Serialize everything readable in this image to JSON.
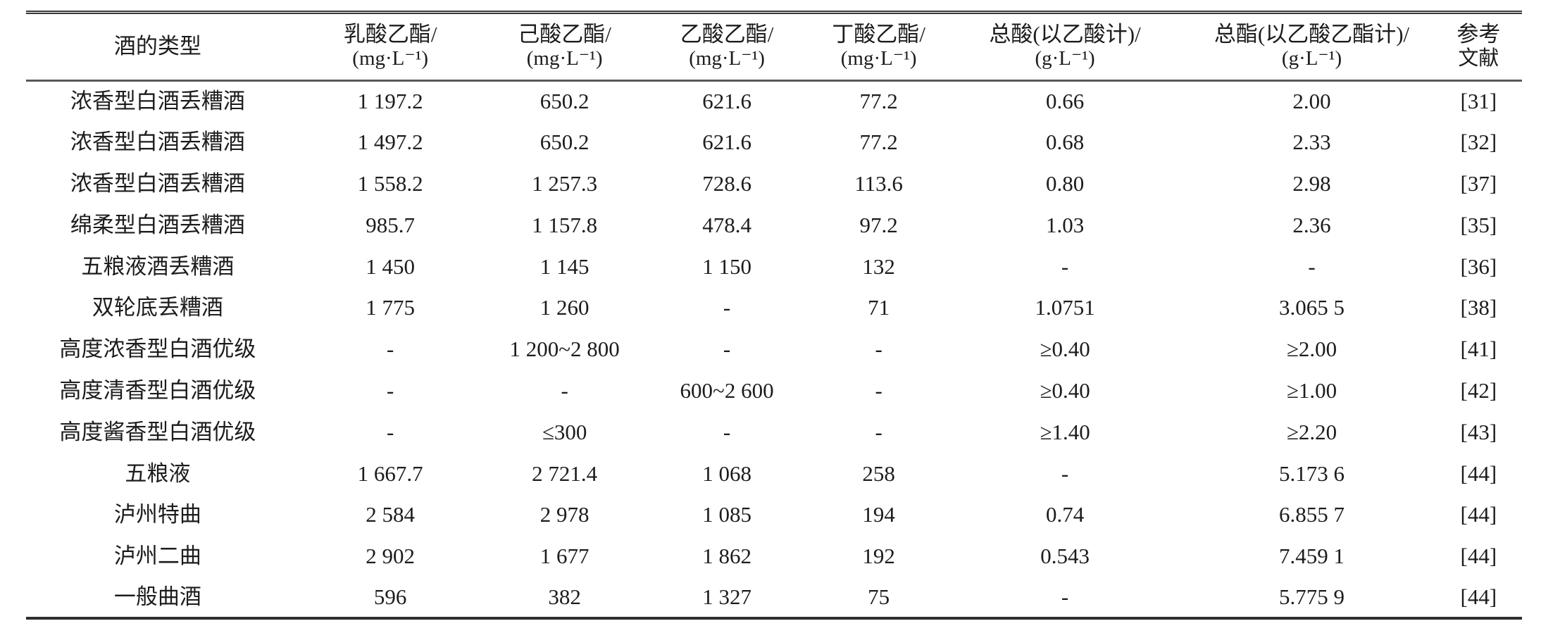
{
  "table": {
    "columns": [
      {
        "line1": "酒的类型",
        "line2": ""
      },
      {
        "line1": "乳酸乙酯/",
        "line2": "(mg·L⁻¹)"
      },
      {
        "line1": "己酸乙酯/",
        "line2": "(mg·L⁻¹)"
      },
      {
        "line1": "乙酸乙酯/",
        "line2": "(mg·L⁻¹)"
      },
      {
        "line1": "丁酸乙酯/",
        "line2": "(mg·L⁻¹)"
      },
      {
        "line1": "总酸(以乙酸计)/",
        "line2": "(g·L⁻¹)"
      },
      {
        "line1": "总酯(以乙酸乙酯计)/",
        "line2": "(g·L⁻¹)"
      },
      {
        "line1": "参考",
        "line2": "文献"
      }
    ],
    "rows": [
      [
        "浓香型白酒丢糟酒",
        "1 197.2",
        "650.2",
        "621.6",
        "77.2",
        "0.66",
        "2.00",
        "[31]"
      ],
      [
        "浓香型白酒丢糟酒",
        "1 497.2",
        "650.2",
        "621.6",
        "77.2",
        "0.68",
        "2.33",
        "[32]"
      ],
      [
        "浓香型白酒丢糟酒",
        "1 558.2",
        "1 257.3",
        "728.6",
        "113.6",
        "0.80",
        "2.98",
        "[37]"
      ],
      [
        "绵柔型白酒丢糟酒",
        "985.7",
        "1 157.8",
        "478.4",
        "97.2",
        "1.03",
        "2.36",
        "[35]"
      ],
      [
        "五粮液酒丢糟酒",
        "1 450",
        "1 145",
        "1 150",
        "132",
        "-",
        "-",
        "[36]"
      ],
      [
        "双轮底丢糟酒",
        "1 775",
        "1 260",
        "-",
        "71",
        "1.0751",
        "3.065 5",
        "[38]"
      ],
      [
        "高度浓香型白酒优级",
        "-",
        "1 200~2 800",
        "-",
        "-",
        "≥0.40",
        "≥2.00",
        "[41]"
      ],
      [
        "高度清香型白酒优级",
        "-",
        "-",
        "600~2 600",
        "-",
        "≥0.40",
        "≥1.00",
        "[42]"
      ],
      [
        "高度酱香型白酒优级",
        "-",
        "≤300",
        "-",
        "-",
        "≥1.40",
        "≥2.20",
        "[43]"
      ],
      [
        "五粮液",
        "1 667.7",
        "2 721.4",
        "1 068",
        "258",
        "-",
        "5.173 6",
        "[44]"
      ],
      [
        "泸州特曲",
        "2 584",
        "2 978",
        "1 085",
        "194",
        "0.74",
        "6.855 7",
        "[44]"
      ],
      [
        "泸州二曲",
        "2 902",
        "1 677",
        "1 862",
        "192",
        "0.543",
        "7.459 1",
        "[44]"
      ],
      [
        "一般曲酒",
        "596",
        "382",
        "1 327",
        "75",
        "-",
        "5.775 9",
        "[44]"
      ]
    ],
    "column_widths_pct": [
      17.6,
      13.5,
      9.8,
      11.9,
      8.4,
      16.5,
      16.5,
      5.8
    ]
  }
}
